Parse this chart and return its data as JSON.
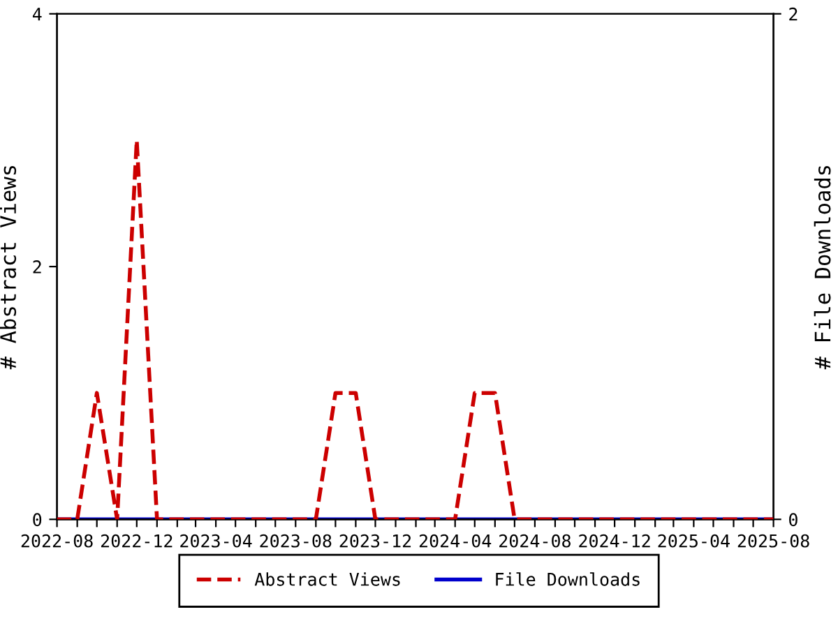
{
  "chart_data": {
    "type": "line",
    "x": [
      "2022-08",
      "2022-09",
      "2022-10",
      "2022-11",
      "2022-12",
      "2023-01",
      "2023-02",
      "2023-03",
      "2023-04",
      "2023-05",
      "2023-06",
      "2023-07",
      "2023-08",
      "2023-09",
      "2023-10",
      "2023-11",
      "2023-12",
      "2024-01",
      "2024-02",
      "2024-03",
      "2024-04",
      "2024-05",
      "2024-06",
      "2024-07",
      "2024-08",
      "2024-09",
      "2024-10",
      "2024-11",
      "2024-12",
      "2025-01",
      "2025-02",
      "2025-03",
      "2025-04",
      "2025-05",
      "2025-06",
      "2025-07",
      "2025-08"
    ],
    "series": [
      {
        "name": "Abstract Views",
        "color": "#cc0000",
        "line_style": "dashed",
        "values": [
          0,
          0,
          1,
          0,
          3,
          0,
          0,
          0,
          0,
          0,
          0,
          0,
          0,
          0,
          1,
          1,
          0,
          0,
          0,
          0,
          0,
          1,
          1,
          0,
          0,
          0,
          0,
          0,
          0,
          0,
          0,
          0,
          0,
          0,
          0,
          0,
          0
        ]
      },
      {
        "name": "File Downloads",
        "color": "#0000cc",
        "line_style": "solid",
        "axis": "y2",
        "values": [
          0,
          0,
          0,
          0,
          0,
          0,
          0,
          0,
          0,
          0,
          0,
          0,
          0,
          0,
          0,
          0,
          0,
          0,
          0,
          0,
          0,
          0,
          0,
          0,
          0,
          0,
          0,
          0,
          0,
          0,
          0,
          0,
          0,
          0,
          0,
          0,
          0
        ]
      }
    ],
    "ylabel": "# Abstract Views",
    "y2label": "# File Downloads",
    "xlim": [
      "2022-08",
      "2025-08"
    ],
    "xticks": [
      {
        "value": "2022-08",
        "label": "2022-08"
      },
      {
        "value": "2022-09",
        "label": null
      },
      {
        "value": "2022-10",
        "label": null
      },
      {
        "value": "2022-11",
        "label": null
      },
      {
        "value": "2022-12",
        "label": "2022-12"
      },
      {
        "value": "2023-01",
        "label": null
      },
      {
        "value": "2023-02",
        "label": null
      },
      {
        "value": "2023-03",
        "label": null
      },
      {
        "value": "2023-04",
        "label": "2023-04"
      },
      {
        "value": "2023-05",
        "label": null
      },
      {
        "value": "2023-06",
        "label": null
      },
      {
        "value": "2023-07",
        "label": null
      },
      {
        "value": "2023-08",
        "label": "2023-08"
      },
      {
        "value": "2023-09",
        "label": null
      },
      {
        "value": "2023-10",
        "label": null
      },
      {
        "value": "2023-11",
        "label": null
      },
      {
        "value": "2023-12",
        "label": "2023-12"
      },
      {
        "value": "2024-01",
        "label": null
      },
      {
        "value": "2024-02",
        "label": null
      },
      {
        "value": "2024-03",
        "label": null
      },
      {
        "value": "2024-04",
        "label": "2024-04"
      },
      {
        "value": "2024-05",
        "label": null
      },
      {
        "value": "2024-06",
        "label": null
      },
      {
        "value": "2024-07",
        "label": null
      },
      {
        "value": "2024-08",
        "label": "2024-08"
      },
      {
        "value": "2024-09",
        "label": null
      },
      {
        "value": "2024-10",
        "label": null
      },
      {
        "value": "2024-11",
        "label": null
      },
      {
        "value": "2024-12",
        "label": "2024-12"
      },
      {
        "value": "2025-01",
        "label": null
      },
      {
        "value": "2025-02",
        "label": null
      },
      {
        "value": "2025-03",
        "label": null
      },
      {
        "value": "2025-04",
        "label": "2025-04"
      },
      {
        "value": "2025-05",
        "label": null
      },
      {
        "value": "2025-06",
        "label": null
      },
      {
        "value": "2025-07",
        "label": null
      },
      {
        "value": "2025-08",
        "label": "2025-08"
      }
    ],
    "ylim": [
      0,
      4
    ],
    "yticks": [
      0,
      2,
      4
    ],
    "y2lim": [
      0,
      2
    ],
    "y2ticks": [
      0,
      2
    ],
    "grid": false,
    "legend": "bottom",
    "marker": "none"
  }
}
